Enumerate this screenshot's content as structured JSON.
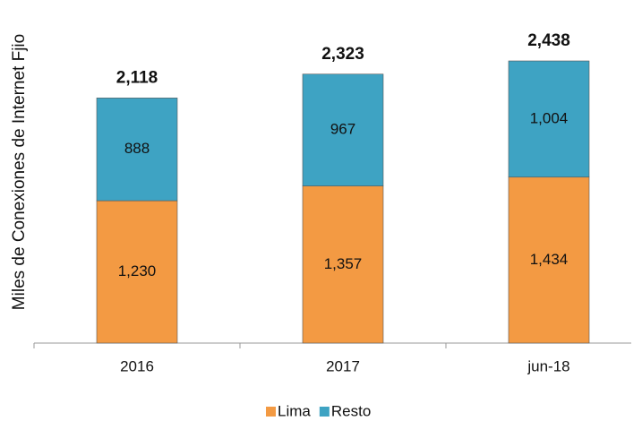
{
  "chart_data": {
    "type": "stacked_bar",
    "y_axis_label": "Miles de Conexiones de Internet Fjio",
    "categories": [
      "2016",
      "2017",
      "jun-18"
    ],
    "series": [
      {
        "name": "Lima",
        "color": "#f39a43",
        "values": [
          1230,
          1357,
          1434
        ],
        "value_labels": [
          "1,230",
          "1,357",
          "1,434"
        ]
      },
      {
        "name": "Resto",
        "color": "#3ea3c3",
        "values": [
          888,
          967,
          1004
        ],
        "value_labels": [
          "888",
          "967",
          "1,004"
        ]
      }
    ],
    "totals": [
      2118,
      2323,
      2438
    ],
    "total_labels": [
      "2,118",
      "2,323",
      "2,438"
    ],
    "ylim": [
      0,
      2500
    ],
    "legend": "bottom"
  }
}
